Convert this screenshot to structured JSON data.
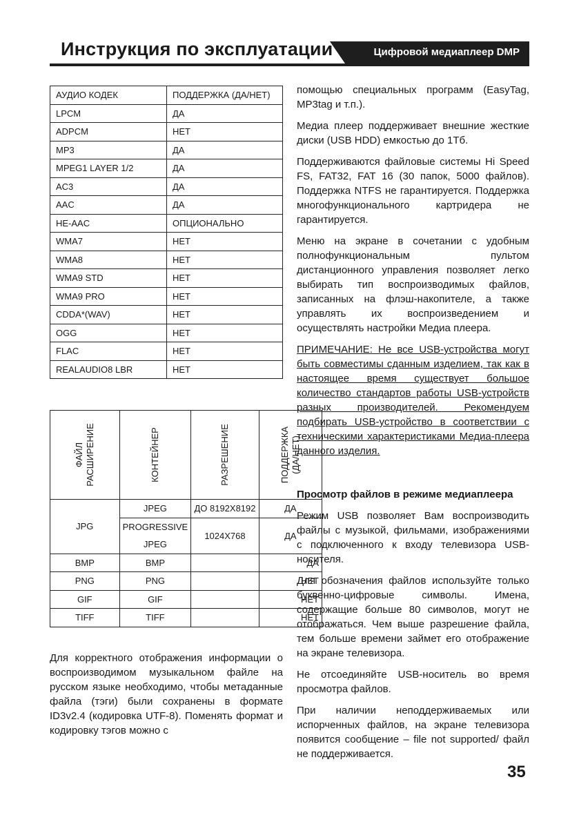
{
  "header": {
    "title": "Инструкция по эксплуатации",
    "subtitle": "Цифровой медиаплеер DMP"
  },
  "audio_table": {
    "header": [
      "АУДИО КОДЕК",
      "ПОДДЕРЖКА (ДА/НЕТ)"
    ],
    "rows": [
      [
        "LPCM",
        "ДА"
      ],
      [
        "ADPCM",
        "НЕТ"
      ],
      [
        "MP3",
        "ДА"
      ],
      [
        "MPEG1 LAYER 1/2",
        "ДА"
      ],
      [
        "AC3",
        "ДА"
      ],
      [
        "AAC",
        "ДА"
      ],
      [
        "HE-AAC",
        "ОПЦИОНАЛЬНО"
      ],
      [
        "WMA7",
        "НЕТ"
      ],
      [
        "WMA8",
        "НЕТ"
      ],
      [
        "WMA9 STD",
        "НЕТ"
      ],
      [
        "WMA9 PRO",
        "НЕТ"
      ],
      [
        "CDDA*(WAV)",
        "НЕТ"
      ],
      [
        "OGG",
        "НЕТ"
      ],
      [
        "FLAC",
        "НЕТ"
      ],
      [
        "REALAUDIO8 LBR",
        "НЕТ"
      ]
    ]
  },
  "image_table": {
    "header": [
      [
        "ФАЙЛ",
        "РАСШИРЕНИЕ"
      ],
      [
        "КОНТЕЙНЕР"
      ],
      [
        "РАЗРЕШЕНИЕ"
      ],
      [
        "ПОДДЕРЖКА",
        "(ДА/НЕТ)"
      ]
    ],
    "jpg": {
      "extension": "JPG",
      "rows": [
        {
          "container": [
            "JPEG"
          ],
          "resolution": "ДО 8192X8192",
          "support": "ДА"
        },
        {
          "container": [
            "PROGRESSIVE",
            "JPEG"
          ],
          "resolution": "1024X768",
          "support": "ДА"
        }
      ]
    },
    "rows": [
      {
        "extension": "BMP",
        "container": "BMP",
        "support": "ДА"
      },
      {
        "extension": "PNG",
        "container": "PNG",
        "support": "НЕТ"
      },
      {
        "extension": "GIF",
        "container": "GIF",
        "support": "НЕТ"
      },
      {
        "extension": "TIFF",
        "container": "TIFF",
        "support": "НЕТ"
      }
    ]
  },
  "left_text": "Для корректного отображения информации о воспроизводимом музыкальном файле на русском языке необходимо, чтобы метаданные файла (тэги) были сохранены в формате ID3v2.4 (кодировка UTF-8). Поменять формат и кодировку тэгов можно с",
  "right_paragraphs": [
    "помощью специальных программ (EasyTag, MP3tag и т.п.).",
    "Медиа плеер поддерживает внешние жесткие диски (USB HDD) емкостью до 1Тб.",
    "Поддерживаются файловые системы Hi Speed FS, FAT32, FAT 16 (30 папок, 5000 файлов). Поддержка NTFS не гарантируется. Поддержка многофункционального картридера не гарантируется.",
    "Меню на экране в сочетании с удобным полнофункциональным пультом дистанционного управления позволяет легко выбирать тип воспроизводимых файлов, записанных на флэш-накопителе, а также управлять их воспроизведением и осуществлять настройки Медиа плеера."
  ],
  "note": "ПРИМЕЧАНИЕ: Не все USB-устройства могут быть совместимы сданным изделием, так как в настоящее время существует большое количество стандартов работы USB-устройств разных производителей. Рекомендуем подбирать USB-устройство в соответствии с техническими характеристиками Медиа-плеера данного изделия.",
  "section": {
    "heading": "Просмотр файлов в режиме медиаплеера",
    "paragraphs": [
      "Режим USB позволяет Вам воспроизводить файлы с музыкой, фильмами, изображениями с подключенного к входу телевизора USB-носителя.",
      "Для обозначения файлов используйте только буквенно-цифровые символы. Имена, содержащие больше 80 символов, могут не отображаться. Чем выше разрешение файла, тем больше времени займет его отображение на экране телевизора.",
      "Не отсоединяйте USB-носитель во время просмотра файлов.",
      "При наличии неподдерживаемых или испорченных файлов, на экране телевизора появится сообщение – file not supported/ файл не поддерживается."
    ]
  },
  "page_number": "35"
}
